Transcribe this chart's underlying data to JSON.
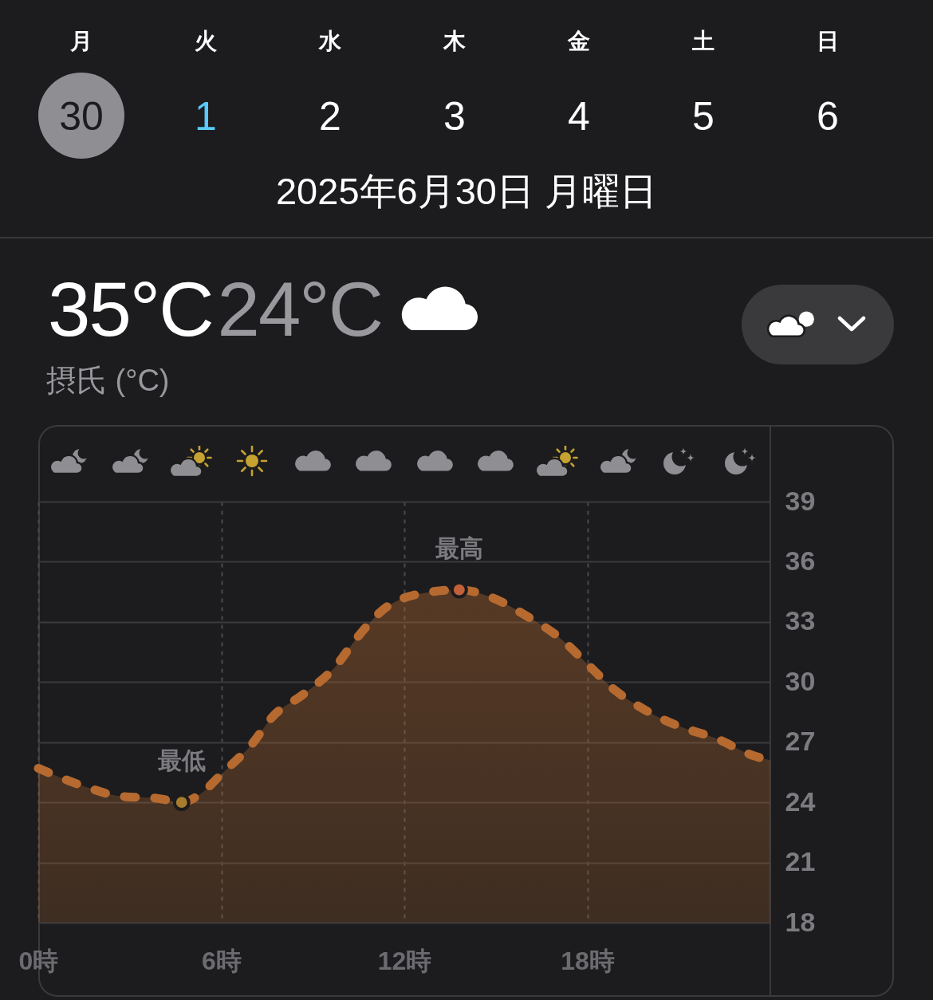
{
  "chart_data": {
    "type": "area",
    "title": "2025年6月30日 月曜日",
    "subtitle": "摂氏 (°C)",
    "annotations": [
      "月",
      "火",
      "水",
      "木",
      "金",
      "土",
      "日",
      "30",
      "1",
      "2",
      "3",
      "4",
      "5",
      "6",
      "35°C",
      "24°C",
      {
        "text": "最低",
        "x": 4.7,
        "y": 24.0
      },
      {
        "text": "最高",
        "x": 13.8,
        "y": 34.6
      }
    ],
    "x": [
      0,
      1.5,
      2.7,
      3.9,
      4.7,
      5.3,
      6,
      7.0,
      7.7,
      8.7,
      9.7,
      10.5,
      11.3,
      12.5,
      13.8,
      14.9,
      16.0,
      17.1,
      18.0,
      18.9,
      19.9,
      21.0,
      22.2,
      23.5,
      24
    ],
    "series": [
      {
        "type": "area",
        "color": "#b66a30",
        "line_style": "dashed",
        "values": [
          25.7,
          24.8,
          24.3,
          24.2,
          24.0,
          24.4,
          25.4,
          26.9,
          28.3,
          29.4,
          30.7,
          32.3,
          33.6,
          34.4,
          34.6,
          34.2,
          33.3,
          32.2,
          30.9,
          29.6,
          28.6,
          27.8,
          27.2,
          26.3,
          26.1
        ]
      },
      {
        "type": "scatter",
        "x": [
          4.7,
          13.8
        ],
        "values": [
          24.0,
          34.6
        ],
        "colors": [
          "#a87c2c",
          "#c2603a"
        ],
        "marker": "circle"
      }
    ],
    "xlim": [
      0,
      24
    ],
    "xticks": [
      {
        "value": 0,
        "label": "0時"
      },
      {
        "value": 6,
        "label": "6時"
      },
      {
        "value": 12,
        "label": "12時"
      },
      {
        "value": 18,
        "label": "18時"
      }
    ],
    "ylim": [
      18,
      39
    ],
    "yticks": [
      18,
      21,
      24,
      27,
      30,
      33,
      36,
      39
    ],
    "grid": true
  }
}
